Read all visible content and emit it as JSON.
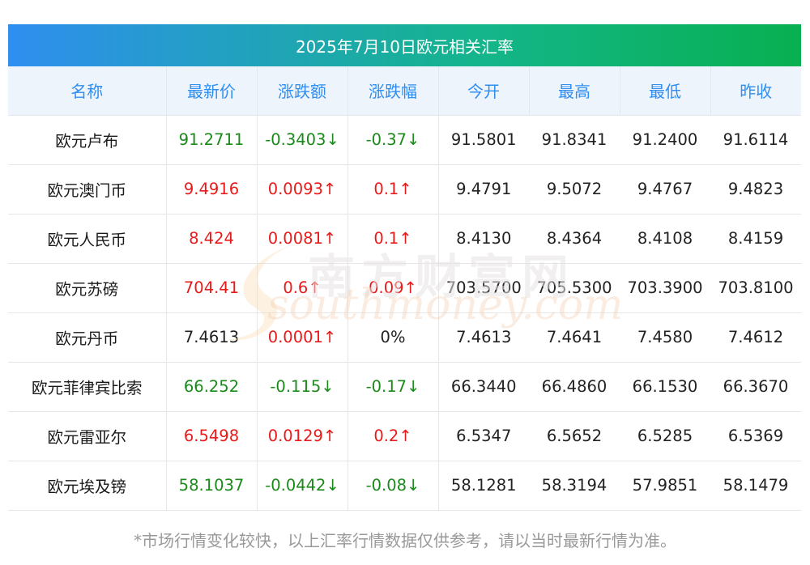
{
  "chart_data": {
    "type": "table",
    "title": "2025年7月10日欧元相关汇率",
    "columns": [
      "名称",
      "最新价",
      "涨跌额",
      "涨跌幅",
      "今开",
      "最高",
      "最低",
      "昨收"
    ],
    "rows": [
      {
        "name": "欧元卢布",
        "last": "91.2711",
        "change": "-0.3403↓",
        "pct": "-0.37↓",
        "open": "91.5801",
        "high": "91.8341",
        "low": "91.2400",
        "prev": "91.6114",
        "dir": "down"
      },
      {
        "name": "欧元澳门币",
        "last": "9.4916",
        "change": "0.0093↑",
        "pct": "0.1↑",
        "open": "9.4791",
        "high": "9.5072",
        "low": "9.4767",
        "prev": "9.4823",
        "dir": "up"
      },
      {
        "name": "欧元人民币",
        "last": "8.424",
        "change": "0.0081↑",
        "pct": "0.1↑",
        "open": "8.4130",
        "high": "8.4364",
        "low": "8.4108",
        "prev": "8.4159",
        "dir": "up"
      },
      {
        "name": "欧元苏磅",
        "last": "704.41",
        "change": "0.6↑",
        "pct": "0.09↑",
        "open": "703.5700",
        "high": "705.5300",
        "low": "703.3900",
        "prev": "703.8100",
        "dir": "up"
      },
      {
        "name": "欧元丹币",
        "last": "7.4613",
        "change": "0.0001↑",
        "pct": "0%",
        "open": "7.4613",
        "high": "7.4641",
        "low": "7.4580",
        "prev": "7.4612",
        "dir": "flat"
      },
      {
        "name": "欧元菲律宾比索",
        "last": "66.252",
        "change": "-0.115↓",
        "pct": "-0.17↓",
        "open": "66.3440",
        "high": "66.4860",
        "low": "66.1530",
        "prev": "66.3670",
        "dir": "down"
      },
      {
        "name": "欧元雷亚尔",
        "last": "6.5498",
        "change": "0.0129↑",
        "pct": "0.2↑",
        "open": "6.5347",
        "high": "6.5652",
        "low": "6.5285",
        "prev": "6.5369",
        "dir": "up"
      },
      {
        "name": "欧元埃及镑",
        "last": "58.1037",
        "change": "-0.0442↓",
        "pct": "-0.08↓",
        "open": "58.1281",
        "high": "58.3194",
        "low": "57.9851",
        "prev": "58.1479",
        "dir": "down"
      }
    ]
  },
  "footnote": "*市场行情变化较快，以上汇率行情数据仅供参考，请以当时最新行情为准。",
  "watermark": {
    "text_cn": "南方财富网",
    "text_en": "southmoney.com"
  },
  "colors": {
    "header_gradient_start": "#2f8ef0",
    "header_gradient_end": "#08b050",
    "column_header_text": "#2f8ef0",
    "up": "#e81a1a",
    "down": "#1a8a1a"
  }
}
